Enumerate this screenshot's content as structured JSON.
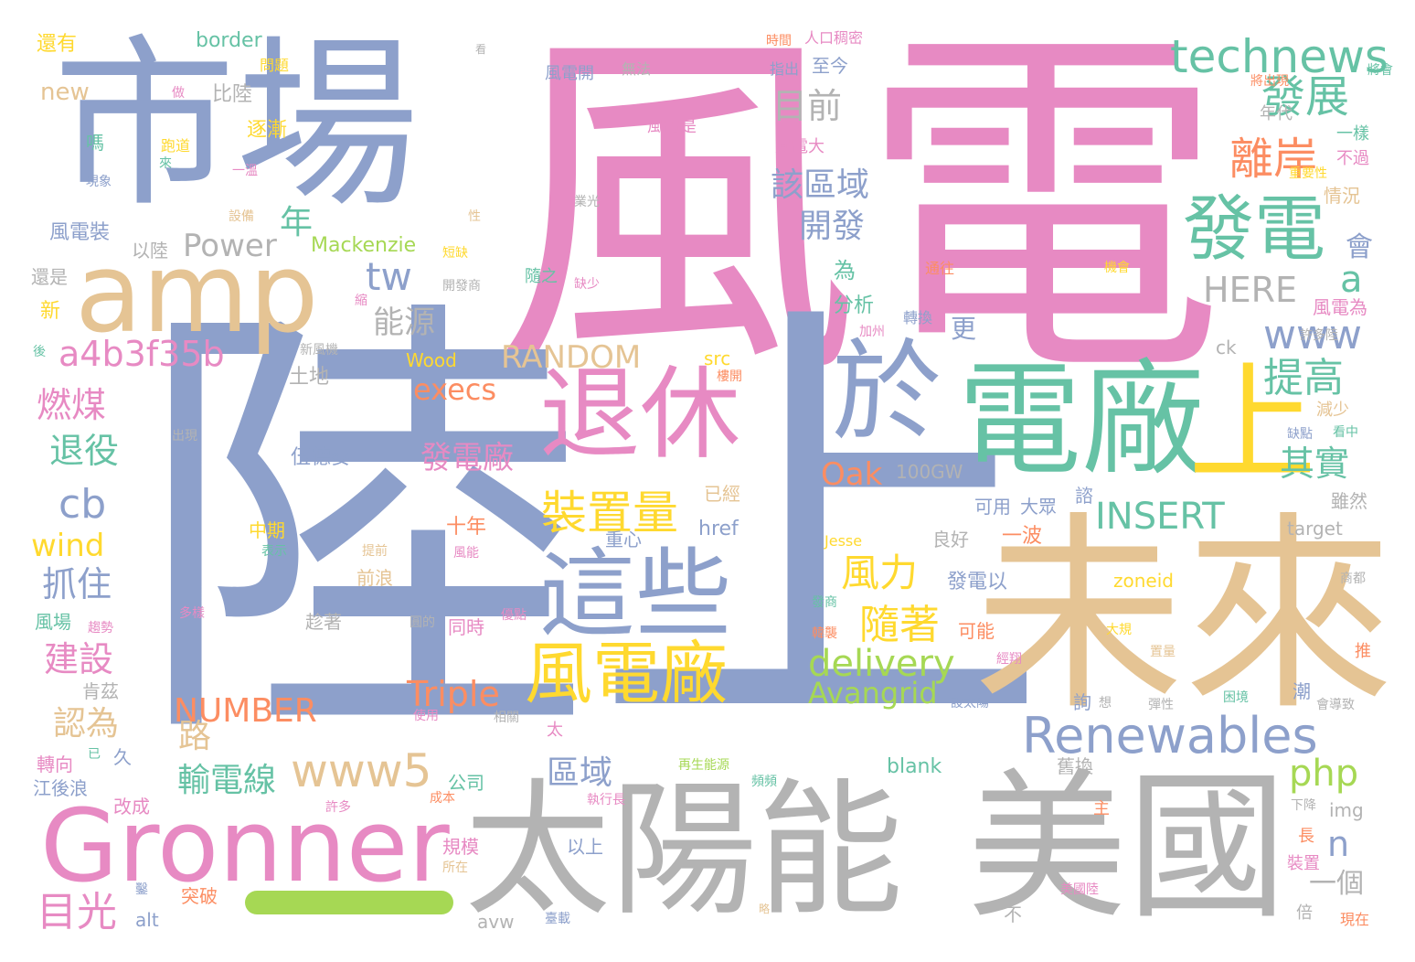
{
  "colors": {
    "pink": "#e78ac3",
    "blue": "#8da0cb",
    "green": "#66c2a5",
    "tan": "#e5c494",
    "gray": "#b3b3b3",
    "yellow": "#ffd92f",
    "orange": "#fc8d62",
    "lime": "#a6d854"
  },
  "words": [
    {
      "t": "風電",
      "c": "pink"
    },
    {
      "t": "陸上",
      "c": "blue"
    },
    {
      "t": "市場",
      "c": "blue"
    },
    {
      "t": "未來",
      "c": "tan"
    },
    {
      "t": "太陽能",
      "c": "gray"
    },
    {
      "t": "美國",
      "c": "gray"
    },
    {
      "t": "電廠",
      "c": "green"
    },
    {
      "t": "amp",
      "c": "tan"
    },
    {
      "t": "Gronner",
      "c": "pink"
    },
    {
      "t": "退休",
      "c": "pink"
    },
    {
      "t": "這些",
      "c": "blue"
    },
    {
      "t": "於",
      "c": "blue"
    },
    {
      "t": "上",
      "c": "yellow"
    },
    {
      "t": "發電",
      "c": "green"
    },
    {
      "t": "Renewables",
      "c": "blue"
    },
    {
      "t": "風電廠",
      "c": "yellow"
    },
    {
      "t": "technews",
      "c": "green"
    },
    {
      "t": "a4b3f35b",
      "c": "pink"
    },
    {
      "t": "發展",
      "c": "green"
    },
    {
      "t": "離岸",
      "c": "orange"
    },
    {
      "t": "目前",
      "c": "gray"
    },
    {
      "t": "該區域",
      "c": "blue"
    },
    {
      "t": "開發",
      "c": "blue"
    },
    {
      "t": "Power",
      "c": "gray"
    },
    {
      "t": "年",
      "c": "green"
    },
    {
      "t": "tw",
      "c": "blue"
    },
    {
      "t": "能源",
      "c": "gray"
    },
    {
      "t": "RANDOM",
      "c": "tan"
    },
    {
      "t": "www",
      "c": "blue"
    },
    {
      "t": "HERE",
      "c": "gray"
    },
    {
      "t": "a",
      "c": "green"
    },
    {
      "t": "提高",
      "c": "green"
    },
    {
      "t": "其實",
      "c": "green"
    },
    {
      "t": "INSERT",
      "c": "green"
    },
    {
      "t": "cb",
      "c": "blue"
    },
    {
      "t": "燃煤",
      "c": "pink"
    },
    {
      "t": "退役",
      "c": "green"
    },
    {
      "t": "wind",
      "c": "yellow"
    },
    {
      "t": "抓住",
      "c": "blue"
    },
    {
      "t": "建設",
      "c": "pink"
    },
    {
      "t": "認為",
      "c": "tan"
    },
    {
      "t": "目光",
      "c": "pink"
    },
    {
      "t": "路",
      "c": "tan"
    },
    {
      "t": "輸電線",
      "c": "green"
    },
    {
      "t": "www5",
      "c": "tan"
    },
    {
      "t": "NUMBER",
      "c": "orange"
    },
    {
      "t": "Triple",
      "c": "orange"
    },
    {
      "t": "delivery",
      "c": "lime"
    },
    {
      "t": "Avangrid",
      "c": "lime"
    },
    {
      "t": "風力",
      "c": "yellow"
    },
    {
      "t": "隨著",
      "c": "yellow"
    },
    {
      "t": "裝置量",
      "c": "yellow"
    },
    {
      "t": "發電廠",
      "c": "pink"
    },
    {
      "t": "Oak",
      "c": "orange"
    },
    {
      "t": "execs",
      "c": "orange"
    },
    {
      "t": "php",
      "c": "lime"
    },
    {
      "t": "區域",
      "c": "blue"
    },
    {
      "t": "n",
      "c": "blue"
    },
    {
      "t": "一個",
      "c": "gray"
    },
    {
      "t": "Mackenzie",
      "c": "lime"
    },
    {
      "t": "border",
      "c": "green"
    },
    {
      "t": "new",
      "c": "tan"
    },
    {
      "t": "還有",
      "c": "yellow"
    },
    {
      "t": "比陸",
      "c": "gray"
    },
    {
      "t": "逐漸",
      "c": "yellow"
    },
    {
      "t": "嗎",
      "c": "green"
    },
    {
      "t": "風電裝",
      "c": "blue"
    },
    {
      "t": "以陸",
      "c": "gray"
    },
    {
      "t": "還是",
      "c": "gray"
    },
    {
      "t": "新",
      "c": "yellow"
    },
    {
      "t": "土地",
      "c": "gray"
    },
    {
      "t": "Wood",
      "c": "yellow"
    },
    {
      "t": "src",
      "c": "yellow"
    },
    {
      "t": "更",
      "c": "blue"
    },
    {
      "t": "為",
      "c": "green"
    },
    {
      "t": "分析",
      "c": "green"
    },
    {
      "t": "會",
      "c": "blue"
    },
    {
      "t": "風電為",
      "c": "pink"
    },
    {
      "t": "ck",
      "c": "gray"
    },
    {
      "t": "伍德麥",
      "c": "blue"
    },
    {
      "t": "100GW",
      "c": "gray"
    },
    {
      "t": "已經",
      "c": "tan"
    },
    {
      "t": "href",
      "c": "blue"
    },
    {
      "t": "中期",
      "c": "yellow"
    },
    {
      "t": "十年",
      "c": "orange"
    },
    {
      "t": "重心",
      "c": "blue"
    },
    {
      "t": "良好",
      "c": "gray"
    },
    {
      "t": "一波",
      "c": "orange"
    },
    {
      "t": "可用",
      "c": "blue"
    },
    {
      "t": "大眾",
      "c": "blue"
    },
    {
      "t": "發電以",
      "c": "blue"
    },
    {
      "t": "同時",
      "c": "pink"
    },
    {
      "t": "可能",
      "c": "orange"
    },
    {
      "t": "前浪",
      "c": "tan"
    },
    {
      "t": "趁著",
      "c": "gray"
    },
    {
      "t": "風場",
      "c": "green"
    },
    {
      "t": "肯茲",
      "c": "gray"
    },
    {
      "t": "轉向",
      "c": "pink"
    },
    {
      "t": "江後浪",
      "c": "blue"
    },
    {
      "t": "久",
      "c": "blue"
    },
    {
      "t": "改成",
      "c": "pink"
    },
    {
      "t": "公司",
      "c": "green"
    },
    {
      "t": "規模",
      "c": "pink"
    },
    {
      "t": "突破",
      "c": "orange"
    },
    {
      "t": "以上",
      "c": "blue"
    },
    {
      "t": "alt",
      "c": "blue"
    },
    {
      "t": "avw",
      "c": "gray"
    },
    {
      "t": "不",
      "c": "gray"
    },
    {
      "t": "blank",
      "c": "green"
    },
    {
      "t": "舊換",
      "c": "gray"
    },
    {
      "t": "主",
      "c": "orange"
    },
    {
      "t": "長",
      "c": "orange"
    },
    {
      "t": "裝置",
      "c": "pink"
    },
    {
      "t": "倍",
      "c": "gray"
    },
    {
      "t": "img",
      "c": "gray"
    },
    {
      "t": "target",
      "c": "gray"
    },
    {
      "t": "zoneid",
      "c": "yellow"
    },
    {
      "t": "雖然",
      "c": "gray"
    },
    {
      "t": "潮",
      "c": "blue"
    },
    {
      "t": "詢",
      "c": "blue"
    },
    {
      "t": "推",
      "c": "orange"
    },
    {
      "t": "情況",
      "c": "tan"
    },
    {
      "t": "不過",
      "c": "pink"
    },
    {
      "t": "一樣",
      "c": "green"
    },
    {
      "t": "年代",
      "c": "gray"
    },
    {
      "t": "至今",
      "c": "blue"
    },
    {
      "t": "風電是",
      "c": "pink"
    },
    {
      "t": "風電大",
      "c": "pink"
    },
    {
      "t": "風電開",
      "c": "blue"
    },
    {
      "t": "無法",
      "c": "gray"
    },
    {
      "t": "減少",
      "c": "tan"
    },
    {
      "t": "Jesse",
      "c": "yellow"
    },
    {
      "t": "諮",
      "c": "blue"
    },
    {
      "t": "人口稠密",
      "c": "pink"
    },
    {
      "t": "時間",
      "c": "orange"
    },
    {
      "t": "指出",
      "c": "blue"
    },
    {
      "t": "做",
      "c": "pink"
    },
    {
      "t": "問題",
      "c": "yellow"
    },
    {
      "t": "跑道",
      "c": "yellow"
    },
    {
      "t": "來",
      "c": "green"
    },
    {
      "t": "現象",
      "c": "blue"
    },
    {
      "t": "一溫",
      "c": "pink"
    },
    {
      "t": "性",
      "c": "tan"
    },
    {
      "t": "短缺",
      "c": "yellow"
    },
    {
      "t": "隨之",
      "c": "green"
    },
    {
      "t": "缺少",
      "c": "pink"
    },
    {
      "t": "開發商",
      "c": "gray"
    },
    {
      "t": "通往",
      "c": "orange"
    },
    {
      "t": "機會",
      "c": "yellow"
    },
    {
      "t": "許多陸",
      "c": "gray"
    },
    {
      "t": "轉換",
      "c": "blue"
    },
    {
      "t": "加州",
      "c": "pink"
    },
    {
      "t": "樓開",
      "c": "orange"
    },
    {
      "t": "缺點",
      "c": "blue"
    },
    {
      "t": "看中",
      "c": "green"
    },
    {
      "t": "將出現",
      "c": "orange"
    },
    {
      "t": "將會",
      "c": "green"
    },
    {
      "t": "重要性",
      "c": "yellow"
    },
    {
      "t": "出現",
      "c": "gray"
    },
    {
      "t": "新風機",
      "c": "gray"
    },
    {
      "t": "縮",
      "c": "pink"
    },
    {
      "t": "後",
      "c": "green"
    },
    {
      "t": "設備",
      "c": "tan"
    },
    {
      "t": "表示",
      "c": "green"
    },
    {
      "t": "提前",
      "c": "tan"
    },
    {
      "t": "風能",
      "c": "pink"
    },
    {
      "t": "多樣",
      "c": "pink"
    },
    {
      "t": "趨勢",
      "c": "pink"
    },
    {
      "t": "圓的",
      "c": "gray"
    },
    {
      "t": "優點",
      "c": "pink"
    },
    {
      "t": "發商",
      "c": "green"
    },
    {
      "t": "韓襲",
      "c": "orange"
    },
    {
      "t": "置量",
      "c": "tan"
    },
    {
      "t": "大規",
      "c": "yellow"
    },
    {
      "t": "想",
      "c": "gray"
    },
    {
      "t": "彈性",
      "c": "gray"
    },
    {
      "t": "困境",
      "c": "green"
    },
    {
      "t": "會導致",
      "c": "gray"
    },
    {
      "t": "經翔",
      "c": "pink"
    },
    {
      "t": "設太陽",
      "c": "blue"
    },
    {
      "t": "商都",
      "c": "gray"
    },
    {
      "t": "使用",
      "c": "pink"
    },
    {
      "t": "相關",
      "c": "gray"
    },
    {
      "t": "太",
      "c": "pink"
    },
    {
      "t": "再生能源",
      "c": "lime"
    },
    {
      "t": "頻頻",
      "c": "green"
    },
    {
      "t": "執行長",
      "c": "pink"
    },
    {
      "t": "成本",
      "c": "orange"
    },
    {
      "t": "許多",
      "c": "pink"
    },
    {
      "t": "所在",
      "c": "tan"
    },
    {
      "t": "已",
      "c": "green"
    },
    {
      "t": "鑿",
      "c": "blue"
    },
    {
      "t": "臺載",
      "c": "blue"
    },
    {
      "t": "美國陸",
      "c": "pink"
    },
    {
      "t": "下降",
      "c": "gray"
    },
    {
      "t": "現在",
      "c": "orange"
    },
    {
      "t": "略",
      "c": "tan"
    },
    {
      "t": "業光",
      "c": "gray"
    },
    {
      "t": "看",
      "c": "gray"
    }
  ]
}
